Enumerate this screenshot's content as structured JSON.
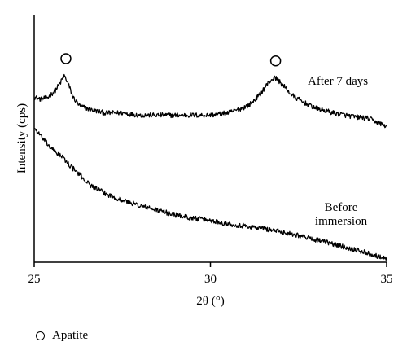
{
  "chart_data": {
    "type": "line",
    "xlabel": "2θ (°)",
    "ylabel": "Intensity (cps)",
    "xlim": [
      25,
      35
    ],
    "ylim": [
      0,
      100
    ],
    "x_ticks": [
      25,
      30,
      35
    ],
    "grid": false,
    "series": [
      {
        "name": "After 7 days",
        "label_lines": [
          "After 7 days"
        ],
        "x": [
          25.0,
          25.2,
          25.4,
          25.6,
          25.75,
          25.85,
          25.95,
          26.1,
          26.3,
          26.6,
          27.0,
          27.5,
          28.0,
          28.5,
          29.0,
          29.5,
          30.0,
          30.5,
          30.8,
          31.1,
          31.4,
          31.6,
          31.75,
          31.85,
          31.95,
          32.1,
          32.3,
          32.6,
          33.0,
          33.5,
          34.0,
          34.5,
          35.0
        ],
        "y": [
          71.5,
          70.5,
          71.5,
          74.5,
          78.0,
          81.0,
          78.0,
          71.5,
          67.5,
          66.0,
          64.5,
          64.5,
          63.5,
          63.5,
          63.5,
          63.5,
          63.5,
          64.5,
          66.0,
          68.0,
          72.5,
          77.0,
          79.5,
          80.0,
          78.5,
          76.0,
          72.5,
          69.5,
          66.5,
          64.5,
          63.0,
          62.0,
          58.5
        ]
      },
      {
        "name": "Before immersion",
        "label_lines": [
          "Before",
          "immersion"
        ],
        "x": [
          25.0,
          25.2,
          25.5,
          25.8,
          26.0,
          26.3,
          26.6,
          27.0,
          27.5,
          28.0,
          28.5,
          29.0,
          29.5,
          30.0,
          30.5,
          31.0,
          31.5,
          32.0,
          32.5,
          33.0,
          33.5,
          34.0,
          34.5,
          35.0
        ],
        "y": [
          58.0,
          54.0,
          48.5,
          45.0,
          41.5,
          37.0,
          32.5,
          29.0,
          26.0,
          23.5,
          21.5,
          19.5,
          18.0,
          17.0,
          15.5,
          14.5,
          13.5,
          12.0,
          10.5,
          8.5,
          6.5,
          4.5,
          2.5,
          0.0
        ]
      }
    ],
    "annotations": [
      {
        "marker": "open-circle",
        "x": 25.9,
        "y": 88.5,
        "meaning": "Apatite"
      },
      {
        "marker": "open-circle",
        "x": 31.85,
        "y": 87.5,
        "meaning": "Apatite"
      }
    ]
  },
  "legend": {
    "items": [
      {
        "marker": "open-circle",
        "label": "Apatite"
      }
    ]
  }
}
